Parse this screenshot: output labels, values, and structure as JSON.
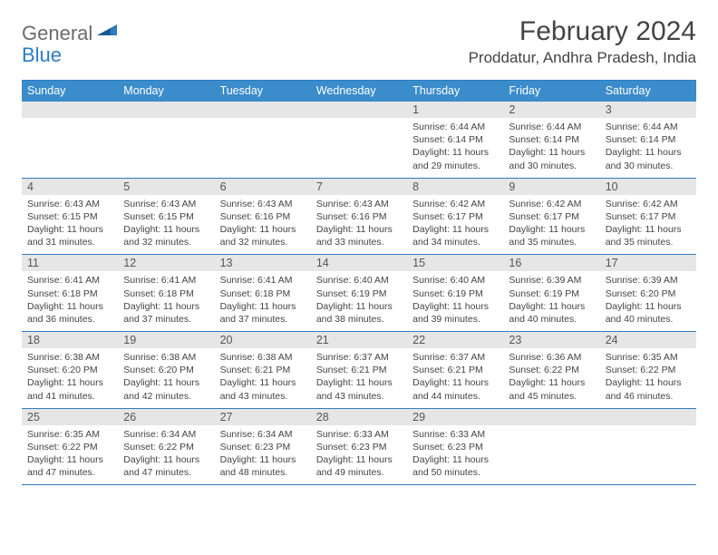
{
  "brand": {
    "part1": "General",
    "part2": "Blue",
    "color1": "#6b6b6b",
    "color2": "#2e7cc0"
  },
  "title": "February 2024",
  "location": "Proddatur, Andhra Pradesh, India",
  "colors": {
    "header_bg": "#3b8cca",
    "header_text": "#ffffff",
    "daynum_bg": "#e6e6e6",
    "border": "#2e7cc0",
    "text": "#444444"
  },
  "day_names": [
    "Sunday",
    "Monday",
    "Tuesday",
    "Wednesday",
    "Thursday",
    "Friday",
    "Saturday"
  ],
  "weeks": [
    {
      "nums": [
        "",
        "",
        "",
        "",
        "1",
        "2",
        "3"
      ],
      "cells": [
        {
          "sunrise": "",
          "sunset": "",
          "daylight": ""
        },
        {
          "sunrise": "",
          "sunset": "",
          "daylight": ""
        },
        {
          "sunrise": "",
          "sunset": "",
          "daylight": ""
        },
        {
          "sunrise": "",
          "sunset": "",
          "daylight": ""
        },
        {
          "sunrise": "Sunrise: 6:44 AM",
          "sunset": "Sunset: 6:14 PM",
          "daylight": "Daylight: 11 hours and 29 minutes."
        },
        {
          "sunrise": "Sunrise: 6:44 AM",
          "sunset": "Sunset: 6:14 PM",
          "daylight": "Daylight: 11 hours and 30 minutes."
        },
        {
          "sunrise": "Sunrise: 6:44 AM",
          "sunset": "Sunset: 6:14 PM",
          "daylight": "Daylight: 11 hours and 30 minutes."
        }
      ]
    },
    {
      "nums": [
        "4",
        "5",
        "6",
        "7",
        "8",
        "9",
        "10"
      ],
      "cells": [
        {
          "sunrise": "Sunrise: 6:43 AM",
          "sunset": "Sunset: 6:15 PM",
          "daylight": "Daylight: 11 hours and 31 minutes."
        },
        {
          "sunrise": "Sunrise: 6:43 AM",
          "sunset": "Sunset: 6:15 PM",
          "daylight": "Daylight: 11 hours and 32 minutes."
        },
        {
          "sunrise": "Sunrise: 6:43 AM",
          "sunset": "Sunset: 6:16 PM",
          "daylight": "Daylight: 11 hours and 32 minutes."
        },
        {
          "sunrise": "Sunrise: 6:43 AM",
          "sunset": "Sunset: 6:16 PM",
          "daylight": "Daylight: 11 hours and 33 minutes."
        },
        {
          "sunrise": "Sunrise: 6:42 AM",
          "sunset": "Sunset: 6:17 PM",
          "daylight": "Daylight: 11 hours and 34 minutes."
        },
        {
          "sunrise": "Sunrise: 6:42 AM",
          "sunset": "Sunset: 6:17 PM",
          "daylight": "Daylight: 11 hours and 35 minutes."
        },
        {
          "sunrise": "Sunrise: 6:42 AM",
          "sunset": "Sunset: 6:17 PM",
          "daylight": "Daylight: 11 hours and 35 minutes."
        }
      ]
    },
    {
      "nums": [
        "11",
        "12",
        "13",
        "14",
        "15",
        "16",
        "17"
      ],
      "cells": [
        {
          "sunrise": "Sunrise: 6:41 AM",
          "sunset": "Sunset: 6:18 PM",
          "daylight": "Daylight: 11 hours and 36 minutes."
        },
        {
          "sunrise": "Sunrise: 6:41 AM",
          "sunset": "Sunset: 6:18 PM",
          "daylight": "Daylight: 11 hours and 37 minutes."
        },
        {
          "sunrise": "Sunrise: 6:41 AM",
          "sunset": "Sunset: 6:18 PM",
          "daylight": "Daylight: 11 hours and 37 minutes."
        },
        {
          "sunrise": "Sunrise: 6:40 AM",
          "sunset": "Sunset: 6:19 PM",
          "daylight": "Daylight: 11 hours and 38 minutes."
        },
        {
          "sunrise": "Sunrise: 6:40 AM",
          "sunset": "Sunset: 6:19 PM",
          "daylight": "Daylight: 11 hours and 39 minutes."
        },
        {
          "sunrise": "Sunrise: 6:39 AM",
          "sunset": "Sunset: 6:19 PM",
          "daylight": "Daylight: 11 hours and 40 minutes."
        },
        {
          "sunrise": "Sunrise: 6:39 AM",
          "sunset": "Sunset: 6:20 PM",
          "daylight": "Daylight: 11 hours and 40 minutes."
        }
      ]
    },
    {
      "nums": [
        "18",
        "19",
        "20",
        "21",
        "22",
        "23",
        "24"
      ],
      "cells": [
        {
          "sunrise": "Sunrise: 6:38 AM",
          "sunset": "Sunset: 6:20 PM",
          "daylight": "Daylight: 11 hours and 41 minutes."
        },
        {
          "sunrise": "Sunrise: 6:38 AM",
          "sunset": "Sunset: 6:20 PM",
          "daylight": "Daylight: 11 hours and 42 minutes."
        },
        {
          "sunrise": "Sunrise: 6:38 AM",
          "sunset": "Sunset: 6:21 PM",
          "daylight": "Daylight: 11 hours and 43 minutes."
        },
        {
          "sunrise": "Sunrise: 6:37 AM",
          "sunset": "Sunset: 6:21 PM",
          "daylight": "Daylight: 11 hours and 43 minutes."
        },
        {
          "sunrise": "Sunrise: 6:37 AM",
          "sunset": "Sunset: 6:21 PM",
          "daylight": "Daylight: 11 hours and 44 minutes."
        },
        {
          "sunrise": "Sunrise: 6:36 AM",
          "sunset": "Sunset: 6:22 PM",
          "daylight": "Daylight: 11 hours and 45 minutes."
        },
        {
          "sunrise": "Sunrise: 6:35 AM",
          "sunset": "Sunset: 6:22 PM",
          "daylight": "Daylight: 11 hours and 46 minutes."
        }
      ]
    },
    {
      "nums": [
        "25",
        "26",
        "27",
        "28",
        "29",
        "",
        ""
      ],
      "cells": [
        {
          "sunrise": "Sunrise: 6:35 AM",
          "sunset": "Sunset: 6:22 PM",
          "daylight": "Daylight: 11 hours and 47 minutes."
        },
        {
          "sunrise": "Sunrise: 6:34 AM",
          "sunset": "Sunset: 6:22 PM",
          "daylight": "Daylight: 11 hours and 47 minutes."
        },
        {
          "sunrise": "Sunrise: 6:34 AM",
          "sunset": "Sunset: 6:23 PM",
          "daylight": "Daylight: 11 hours and 48 minutes."
        },
        {
          "sunrise": "Sunrise: 6:33 AM",
          "sunset": "Sunset: 6:23 PM",
          "daylight": "Daylight: 11 hours and 49 minutes."
        },
        {
          "sunrise": "Sunrise: 6:33 AM",
          "sunset": "Sunset: 6:23 PM",
          "daylight": "Daylight: 11 hours and 50 minutes."
        },
        {
          "sunrise": "",
          "sunset": "",
          "daylight": ""
        },
        {
          "sunrise": "",
          "sunset": "",
          "daylight": ""
        }
      ]
    }
  ]
}
